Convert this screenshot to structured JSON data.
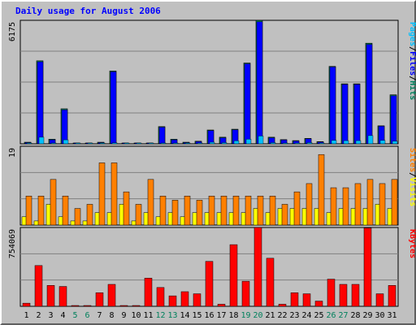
{
  "chart_data": {
    "type": "bar",
    "title": "Daily usage for August 2006",
    "categories": [
      "1",
      "2",
      "3",
      "4",
      "5",
      "6",
      "7",
      "8",
      "9",
      "10",
      "11",
      "12",
      "13",
      "14",
      "15",
      "16",
      "17",
      "18",
      "19",
      "20",
      "21",
      "22",
      "23",
      "24",
      "25",
      "26",
      "27",
      "28",
      "29",
      "30",
      "31"
    ],
    "weekend_days": [
      "5",
      "6",
      "12",
      "13",
      "19",
      "20",
      "26",
      "27"
    ],
    "panels": [
      {
        "name": "hits-files-pages",
        "ymax_label": "6175",
        "ylim": [
          0,
          6175
        ],
        "legend": [
          "Pages",
          "/",
          "Files",
          "/",
          "Hits"
        ],
        "series": [
          {
            "name": "Hits",
            "color": "#00805c",
            "values": [
              80,
              4150,
              230,
              1750,
              30,
              30,
              80,
              3640,
              30,
              30,
              30,
              860,
              230,
              80,
              130,
              690,
              330,
              730,
              4040,
              6175,
              330,
              210,
              160,
              270,
              110,
              3870,
              3000,
              3000,
              5030,
              900,
              2450
            ]
          },
          {
            "name": "Files",
            "color": "#0000ff",
            "values": [
              60,
              4100,
              200,
              1700,
              20,
              20,
              60,
              3600,
              20,
              20,
              20,
              830,
              200,
              60,
              110,
              660,
              300,
              700,
              4000,
              6100,
              300,
              190,
              140,
              250,
              90,
              3840,
              2970,
              2970,
              4970,
              880,
              2400
            ]
          },
          {
            "name": "Pages",
            "color": "#00c0ff",
            "values": [
              20,
              330,
              40,
              200,
              5,
              5,
              20,
              50,
              5,
              5,
              5,
              40,
              40,
              20,
              30,
              80,
              60,
              150,
              230,
              390,
              60,
              40,
              40,
              60,
              20,
              170,
              160,
              160,
              410,
              170,
              130
            ]
          }
        ]
      },
      {
        "name": "visits-sites",
        "ymax_label": "19",
        "ylim": [
          0,
          19
        ],
        "legend": [
          "Sites",
          "/",
          "Visits"
        ],
        "series": [
          {
            "name": "Visits",
            "color": "#ffff00",
            "values": [
              2,
              1,
              5,
              2,
              1,
              1,
              3,
              3,
              5,
              1,
              3,
              2,
              3,
              2,
              3,
              3,
              3,
              3,
              3,
              4,
              3,
              4,
              4,
              4,
              4,
              3,
              4,
              4,
              4,
              5,
              4
            ]
          },
          {
            "name": "Sites",
            "color": "#ff8000",
            "values": [
              7,
              7,
              11,
              7,
              4,
              5,
              15,
              15,
              8,
              5,
              11,
              7,
              6,
              7,
              6,
              7,
              7,
              7,
              7,
              7,
              7,
              5,
              8,
              10,
              17,
              9,
              9,
              10,
              11,
              10,
              11
            ]
          }
        ]
      },
      {
        "name": "kbytes",
        "ymax_label": "754069",
        "ylim": [
          0,
          754069
        ],
        "legend": [
          "KBytes"
        ],
        "series": [
          {
            "name": "KBytes",
            "color": "#ff0000",
            "values": [
              30000,
              390000,
              200000,
              190000,
              4000,
              4000,
              130000,
              210000,
              4000,
              4000,
              270000,
              180000,
              100000,
              140000,
              120000,
              430000,
              20000,
              590000,
              240000,
              760000,
              460000,
              20000,
              130000,
              120000,
              50000,
              260000,
              210000,
              210000,
              750000,
              120000,
              200000
            ]
          }
        ]
      }
    ]
  }
}
